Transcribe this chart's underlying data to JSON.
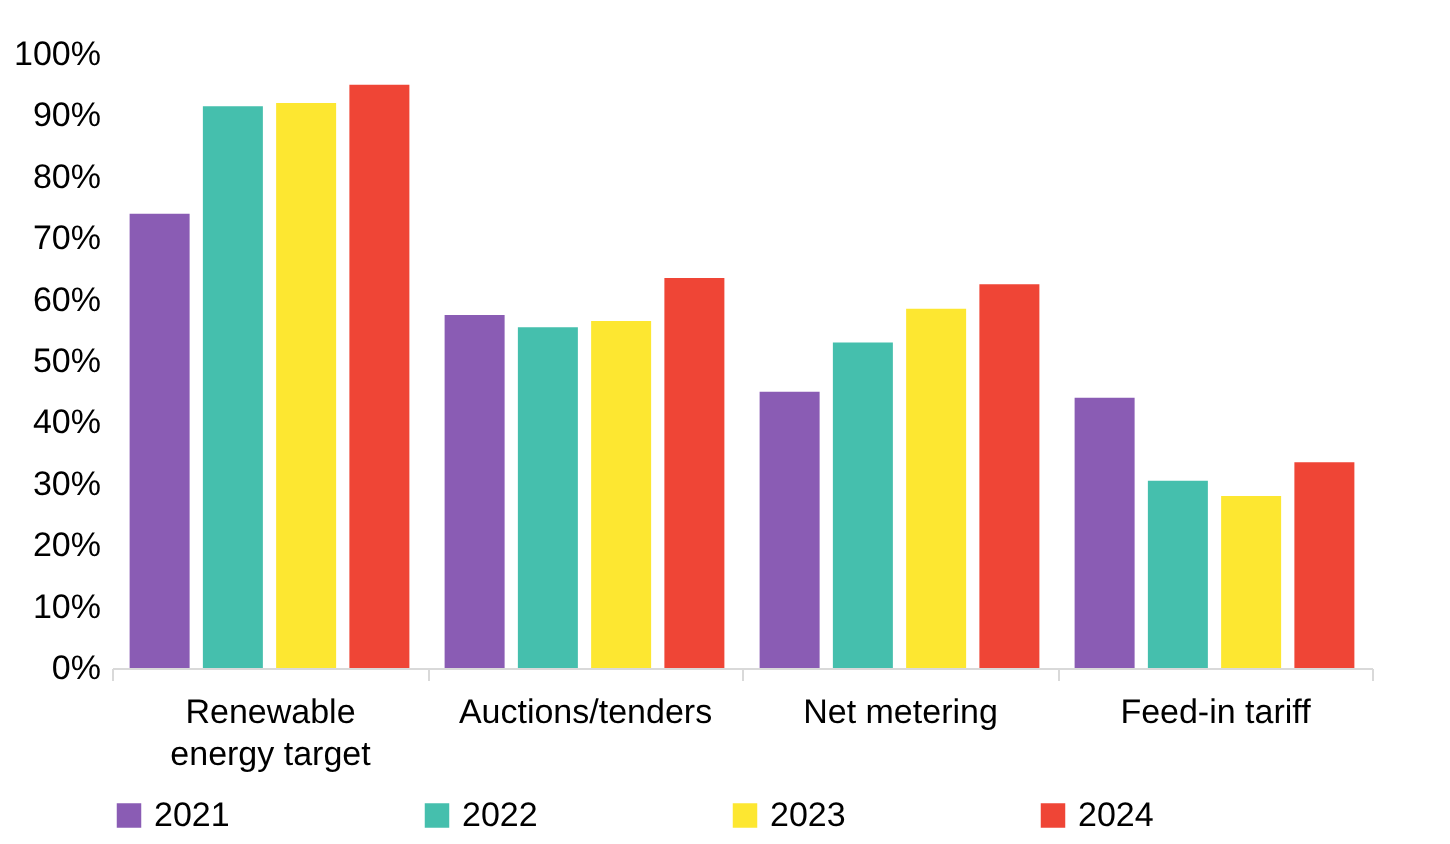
{
  "chart_data": {
    "type": "bar",
    "categories": [
      "Renewable energy target",
      "Auctions/tenders",
      "Net metering",
      "Feed-in tariff"
    ],
    "series": [
      {
        "name": "2021",
        "color": "#8a5cb4",
        "values": [
          74,
          57.5,
          45,
          44
        ]
      },
      {
        "name": "2022",
        "color": "#45bfad",
        "values": [
          91.5,
          55.5,
          53,
          30.5
        ]
      },
      {
        "name": "2023",
        "color": "#fde731",
        "values": [
          92,
          56.5,
          58.5,
          28
        ]
      },
      {
        "name": "2024",
        "color": "#ef4536",
        "values": [
          95,
          63.5,
          62.5,
          33.5
        ]
      }
    ],
    "ylim": [
      0,
      100
    ],
    "yticks": [
      {
        "value": 0,
        "label": "0%"
      },
      {
        "value": 10,
        "label": "10%"
      },
      {
        "value": 20,
        "label": "20%"
      },
      {
        "value": 30,
        "label": "30%"
      },
      {
        "value": 40,
        "label": "40%"
      },
      {
        "value": 50,
        "label": "50%"
      },
      {
        "value": 60,
        "label": "60%"
      },
      {
        "value": 70,
        "label": "70%"
      },
      {
        "value": 80,
        "label": "80%"
      },
      {
        "value": 90,
        "label": "90%"
      },
      {
        "value": 100,
        "label": "100%"
      }
    ],
    "legend": "bottom",
    "grid": false
  }
}
